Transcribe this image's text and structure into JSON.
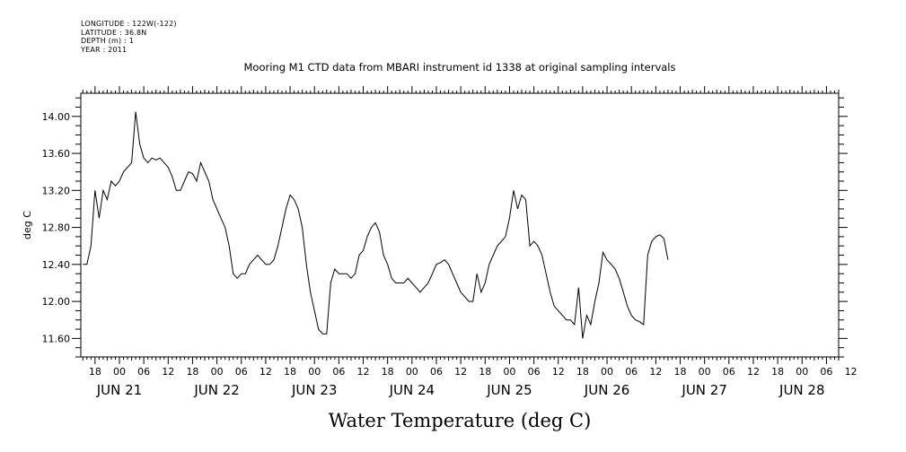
{
  "header": {
    "longitude": "LONGITUDE : 122W(-122)",
    "latitude": "LATITUDE : 36.8N",
    "depth": "DEPTH (m) : 1",
    "year": "YEAR : 2011"
  },
  "chart_data": {
    "type": "line",
    "title": "Mooring M1 CTD data from MBARI instrument id 1338 at original sampling intervals",
    "xlabel": "Water Temperature (deg C)",
    "ylabel": "deg C",
    "ylim": [
      11.4,
      14.25
    ],
    "xlim_hours": [
      -9.5,
      177
    ],
    "x_start": "JUN 20 12:00",
    "yticks": [
      "11.60",
      "12.00",
      "12.40",
      "12.80",
      "13.20",
      "13.60",
      "14.00"
    ],
    "hour_tick_labels": [
      "18",
      "00",
      "06",
      "12",
      "18",
      "00",
      "06",
      "12",
      "18",
      "00",
      "06",
      "12",
      "18",
      "00",
      "06",
      "12",
      "18",
      "00",
      "06",
      "12",
      "18",
      "00",
      "06",
      "12",
      "18",
      "00",
      "06",
      "12",
      "18",
      "00",
      "06",
      "12"
    ],
    "date_labels": [
      "JUN 21",
      "JUN 22",
      "JUN 23",
      "JUN 24",
      "JUN 25",
      "JUN 26",
      "JUN 27",
      "JUN 28"
    ],
    "grid": false,
    "series": [
      {
        "name": "",
        "points": [
          [
            -9,
            12.4
          ],
          [
            -8,
            12.4
          ],
          [
            -7,
            12.6
          ],
          [
            -6,
            13.2
          ],
          [
            -5,
            12.9
          ],
          [
            -4,
            13.2
          ],
          [
            -3,
            13.1
          ],
          [
            -2,
            13.3
          ],
          [
            -1,
            13.25
          ],
          [
            0,
            13.3
          ],
          [
            1,
            13.4
          ],
          [
            2,
            13.45
          ],
          [
            3,
            13.5
          ],
          [
            4,
            14.05
          ],
          [
            5,
            13.7
          ],
          [
            6,
            13.55
          ],
          [
            7,
            13.5
          ],
          [
            8,
            13.55
          ],
          [
            9,
            13.53
          ],
          [
            10,
            13.55
          ],
          [
            11,
            13.5
          ],
          [
            12,
            13.45
          ],
          [
            13,
            13.35
          ],
          [
            14,
            13.2
          ],
          [
            15,
            13.2
          ],
          [
            16,
            13.3
          ],
          [
            17,
            13.4
          ],
          [
            18,
            13.38
          ],
          [
            19,
            13.3
          ],
          [
            20,
            13.5
          ],
          [
            21,
            13.4
          ],
          [
            22,
            13.3
          ],
          [
            23,
            13.1
          ],
          [
            24,
            13.0
          ],
          [
            25,
            12.9
          ],
          [
            26,
            12.8
          ],
          [
            27,
            12.6
          ],
          [
            28,
            12.3
          ],
          [
            29,
            12.25
          ],
          [
            30,
            12.3
          ],
          [
            31,
            12.3
          ],
          [
            32,
            12.4
          ],
          [
            33,
            12.45
          ],
          [
            34,
            12.5
          ],
          [
            35,
            12.45
          ],
          [
            36,
            12.4
          ],
          [
            37,
            12.4
          ],
          [
            38,
            12.45
          ],
          [
            39,
            12.6
          ],
          [
            40,
            12.8
          ],
          [
            41,
            13.0
          ],
          [
            42,
            13.15
          ],
          [
            43,
            13.1
          ],
          [
            44,
            13.0
          ],
          [
            45,
            12.8
          ],
          [
            46,
            12.4
          ],
          [
            47,
            12.1
          ],
          [
            48,
            11.9
          ],
          [
            49,
            11.7
          ],
          [
            50,
            11.65
          ],
          [
            51,
            11.65
          ],
          [
            52,
            12.2
          ],
          [
            53,
            12.35
          ],
          [
            54,
            12.3
          ],
          [
            55,
            12.3
          ],
          [
            56,
            12.3
          ],
          [
            57,
            12.25
          ],
          [
            58,
            12.3
          ],
          [
            59,
            12.5
          ],
          [
            60,
            12.55
          ],
          [
            61,
            12.7
          ],
          [
            62,
            12.8
          ],
          [
            63,
            12.85
          ],
          [
            64,
            12.75
          ],
          [
            65,
            12.5
          ],
          [
            66,
            12.4
          ],
          [
            67,
            12.25
          ],
          [
            68,
            12.2
          ],
          [
            69,
            12.2
          ],
          [
            70,
            12.2
          ],
          [
            71,
            12.25
          ],
          [
            72,
            12.2
          ],
          [
            73,
            12.15
          ],
          [
            74,
            12.1
          ],
          [
            75,
            12.15
          ],
          [
            76,
            12.2
          ],
          [
            77,
            12.3
          ],
          [
            78,
            12.4
          ],
          [
            79,
            12.42
          ],
          [
            80,
            12.45
          ],
          [
            81,
            12.4
          ],
          [
            82,
            12.3
          ],
          [
            83,
            12.2
          ],
          [
            84,
            12.1
          ],
          [
            85,
            12.05
          ],
          [
            86,
            12.0
          ],
          [
            87,
            12.0
          ],
          [
            88,
            12.3
          ],
          [
            89,
            12.1
          ],
          [
            90,
            12.2
          ],
          [
            91,
            12.4
          ],
          [
            92,
            12.5
          ],
          [
            93,
            12.6
          ],
          [
            94,
            12.65
          ],
          [
            95,
            12.7
          ],
          [
            96,
            12.9
          ],
          [
            97,
            13.2
          ],
          [
            98,
            13.0
          ],
          [
            99,
            13.15
          ],
          [
            100,
            13.1
          ],
          [
            101,
            12.6
          ],
          [
            102,
            12.65
          ],
          [
            103,
            12.6
          ],
          [
            104,
            12.5
          ],
          [
            105,
            12.3
          ],
          [
            106,
            12.1
          ],
          [
            107,
            11.95
          ],
          [
            108,
            11.9
          ],
          [
            109,
            11.85
          ],
          [
            110,
            11.8
          ],
          [
            111,
            11.8
          ],
          [
            112,
            11.75
          ],
          [
            113,
            12.15
          ],
          [
            114,
            11.6
          ],
          [
            115,
            11.85
          ],
          [
            116,
            11.75
          ],
          [
            117,
            12.0
          ],
          [
            118,
            12.2
          ],
          [
            119,
            12.53
          ],
          [
            120,
            12.45
          ],
          [
            121,
            12.4
          ],
          [
            122,
            12.35
          ],
          [
            123,
            12.25
          ],
          [
            124,
            12.1
          ],
          [
            125,
            11.95
          ],
          [
            126,
            11.85
          ],
          [
            127,
            11.8
          ],
          [
            128,
            11.78
          ],
          [
            129,
            11.75
          ],
          [
            130,
            12.5
          ],
          [
            131,
            12.65
          ],
          [
            132,
            12.7
          ],
          [
            133,
            12.72
          ],
          [
            134,
            12.68
          ],
          [
            135,
            12.45
          ]
        ]
      }
    ]
  }
}
